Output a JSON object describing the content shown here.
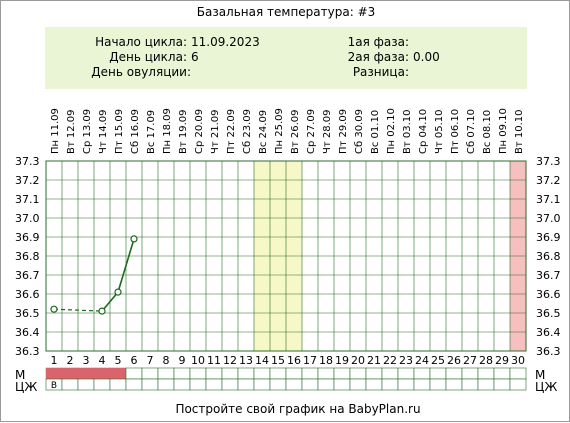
{
  "title": "Базальная температура: #3",
  "info": {
    "cycle_start_label": "Начало цикла:",
    "cycle_start_value": "11.09.2023",
    "cycle_day_label": "День цикла:",
    "cycle_day_value": "6",
    "ovulation_day_label": "День овуляции:",
    "ovulation_day_value": "",
    "phase1_label": "1ая фаза:",
    "phase1_value": "",
    "phase2_label": "2ая фаза:",
    "phase2_value": "0.00",
    "difference_label": "Разница:",
    "difference_value": ""
  },
  "row_labels": {
    "m": "М",
    "cj": "ЦЖ"
  },
  "footer": "Постройте свой график на BabyPlan.ru",
  "colors": {
    "info_bg": "#eaf5d6",
    "highlight_yellow": "#f7f8c8",
    "highlight_pink": "#f6c0c0",
    "menstruation": "#d9646b",
    "line": "#1a6b1a",
    "grid": "#2e6b2e"
  },
  "chart_data": {
    "type": "line",
    "title": "Базальная температура: #3",
    "dates": [
      "Пн 11.09",
      "Вт 12.09",
      "Ср 13.09",
      "Чт 14.09",
      "Пт 15.09",
      "Сб 16.09",
      "Вс 17.09",
      "Пн 18.09",
      "Вт 19.09",
      "Ср 20.09",
      "Чт 21.09",
      "Пт 22.09",
      "Сб 23.09",
      "Вс 24.09",
      "Пн 25.09",
      "Вт 26.09",
      "Ср 27.09",
      "Чт 28.09",
      "Пт 29.09",
      "Сб 30.09",
      "Вс 01.10",
      "Пн 02.10",
      "Вт 03.10",
      "Ср 04.10",
      "Чт 05.10",
      "Пт 06.10",
      "Сб 07.10",
      "Вс 08.10",
      "Пн 09.10",
      "Вт 10.10"
    ],
    "days": [
      1,
      2,
      3,
      4,
      5,
      6,
      7,
      8,
      9,
      10,
      11,
      12,
      13,
      14,
      15,
      16,
      17,
      18,
      19,
      20,
      21,
      22,
      23,
      24,
      25,
      26,
      27,
      28,
      29,
      30
    ],
    "yticks": [
      "37.3",
      "37.2",
      "37.1",
      "37.0",
      "36.9",
      "36.8",
      "36.7",
      "36.6",
      "36.5",
      "36.4",
      "36.3"
    ],
    "ylim": [
      36.3,
      37.3
    ],
    "points": [
      {
        "day": 1,
        "temp": 36.52
      },
      {
        "day": 4,
        "temp": 36.51
      },
      {
        "day": 5,
        "temp": 36.61
      },
      {
        "day": 6,
        "temp": 36.89
      }
    ],
    "segments": [
      {
        "from": 1,
        "to": 4,
        "style": "dashed"
      },
      {
        "from": 4,
        "to": 5,
        "style": "solid"
      },
      {
        "from": 5,
        "to": 6,
        "style": "solid"
      }
    ],
    "highlight_yellow_days": [
      14,
      15,
      16
    ],
    "highlight_pink_days": [
      30
    ],
    "menstruation_days": [
      1,
      2,
      3,
      4,
      5
    ],
    "cj_marks": [
      {
        "day": 1,
        "text": "В"
      }
    ],
    "grid": true
  }
}
